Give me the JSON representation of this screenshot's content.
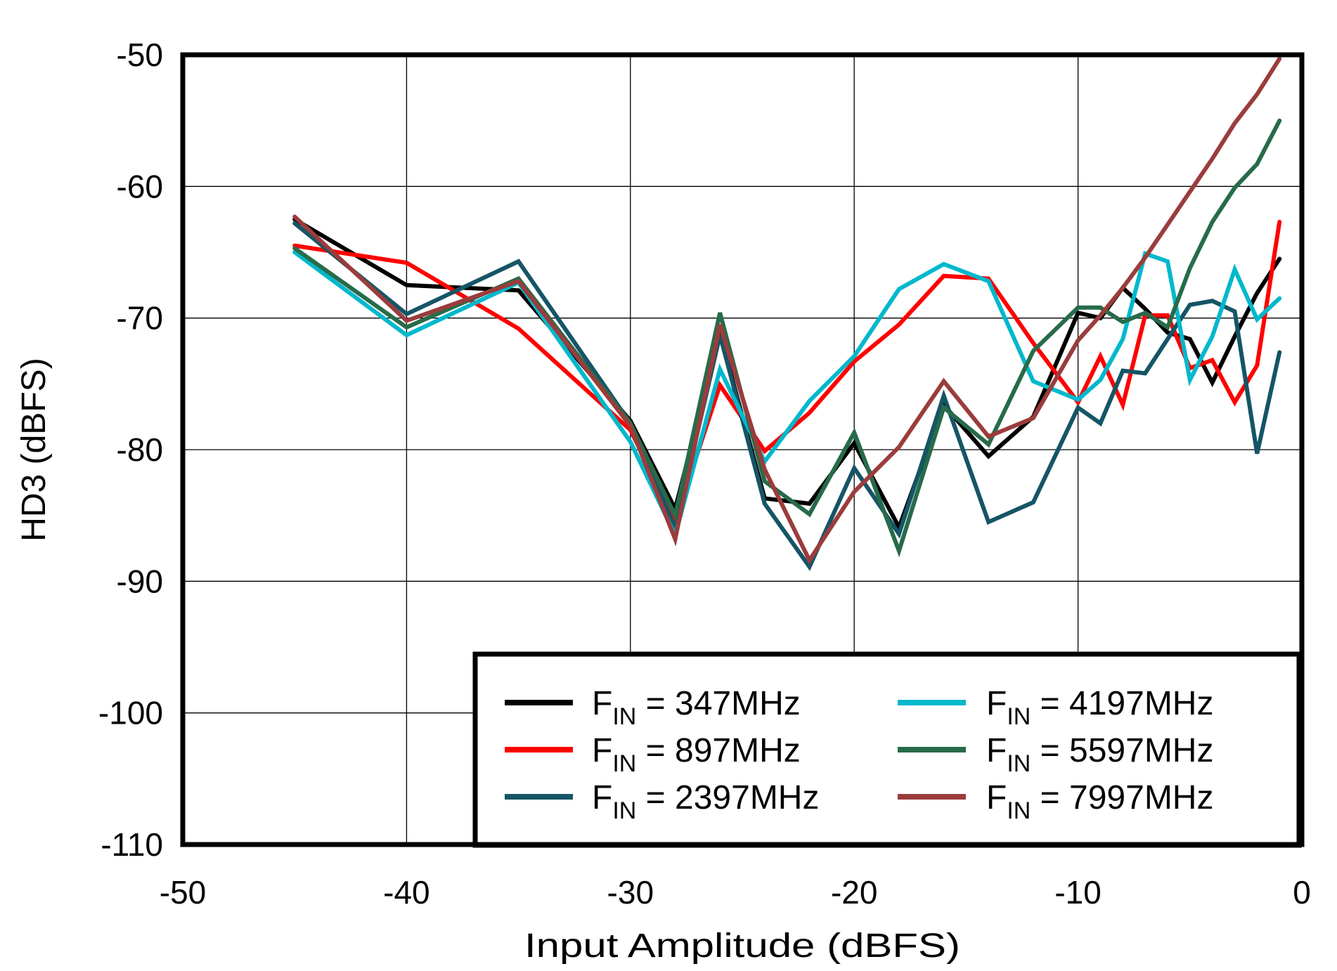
{
  "chart_data": {
    "type": "line",
    "title": "",
    "xlabel": "Input Amplitude  (dBFS)",
    "ylabel": "HD3 (dBFS)",
    "xlim": [
      -50,
      0
    ],
    "ylim": [
      -110,
      -50
    ],
    "x_ticks": [
      "-50",
      "-40",
      "-30",
      "-20",
      "-10",
      "0"
    ],
    "y_ticks": [
      "-50",
      "-60",
      "-70",
      "-80",
      "-90",
      "-100",
      "-110"
    ],
    "grid": true,
    "legend_position": "lower right",
    "x": [
      -45,
      -40,
      -35,
      -30,
      -28,
      -26,
      -24,
      -22,
      -20,
      -18,
      -16,
      -14,
      -12,
      -10,
      -9,
      -8,
      -7,
      -6,
      -5,
      -4,
      -3,
      -2,
      -1
    ],
    "series": [
      {
        "name": "FIN = 347MHz",
        "label_main": "F",
        "label_sub": "IN",
        "label_rest": " = 347MHz",
        "color": "#000000",
        "values": [
          -62.5,
          -67.5,
          -67.9,
          -77.8,
          -84.5,
          -71.2,
          -83.7,
          -84.1,
          -79.5,
          -85.9,
          -76.6,
          -80.5,
          -77.5,
          -69.6,
          -70.0,
          -67.7,
          -69.3,
          -71.1,
          -71.6,
          -74.9,
          -71.4,
          -68.1,
          -65.5
        ]
      },
      {
        "name": "FIN = 897MHz",
        "label_main": "F",
        "label_sub": "IN",
        "label_rest": " = 897MHz",
        "color": "#ff0000",
        "values": [
          -64.5,
          -65.8,
          -70.8,
          -78.5,
          -85.4,
          -75.1,
          -80.1,
          -77.2,
          -73.3,
          -70.5,
          -66.8,
          -67.0,
          -71.9,
          -76.4,
          -72.9,
          -76.6,
          -69.8,
          -69.8,
          -73.8,
          -73.2,
          -76.4,
          -73.6,
          -62.7
        ]
      },
      {
        "name": "FIN = 2397MHz",
        "label_main": "F",
        "label_sub": "IN",
        "label_rest": " = 2397MHz",
        "color": "#155566",
        "values": [
          -62.8,
          -69.7,
          -65.7,
          -78.0,
          -86.0,
          -71.3,
          -84.1,
          -88.9,
          -81.4,
          -86.4,
          -75.9,
          -85.5,
          -84.0,
          -76.8,
          -78.0,
          -74.0,
          -74.2,
          -71.6,
          -69.0,
          -68.7,
          -69.5,
          -80.3,
          -72.6
        ]
      },
      {
        "name": "FIN = 4197MHz",
        "label_main": "F",
        "label_sub": "IN",
        "label_rest": " = 4197MHz",
        "color": "#00b8cc",
        "values": [
          -65.0,
          -71.3,
          -67.3,
          -79.4,
          -86.5,
          -73.9,
          -80.9,
          -76.3,
          -72.9,
          -67.8,
          -65.9,
          -67.2,
          -74.8,
          -76.2,
          -74.7,
          -71.6,
          -65.1,
          -65.7,
          -74.7,
          -71.4,
          -66.3,
          -70.1,
          -68.5
        ]
      },
      {
        "name": "FIN = 5597MHz",
        "label_main": "F",
        "label_sub": "IN",
        "label_rest": " = 5597MHz",
        "color": "#276b4a",
        "values": [
          -64.7,
          -70.7,
          -67.0,
          -78.0,
          -85.0,
          -69.6,
          -82.4,
          -84.9,
          -78.7,
          -87.7,
          -76.8,
          -79.6,
          -72.5,
          -69.2,
          -69.2,
          -70.3,
          -69.6,
          -70.7,
          -66.2,
          -62.7,
          -60.1,
          -58.3,
          -55.0
        ]
      },
      {
        "name": "FIN = 7997MHz",
        "label_main": "F",
        "label_sub": "IN",
        "label_rest": " = 7997MHz",
        "color": "#9b3c3c",
        "values": [
          -62.3,
          -70.2,
          -67.2,
          -78.2,
          -86.8,
          -70.5,
          -81.5,
          -88.4,
          -83.2,
          -79.8,
          -74.8,
          -79.0,
          -77.6,
          -71.7,
          -69.8,
          -67.7,
          -65.4,
          -62.9,
          -60.4,
          -57.9,
          -55.2,
          -53.0,
          -50.3
        ]
      }
    ]
  }
}
